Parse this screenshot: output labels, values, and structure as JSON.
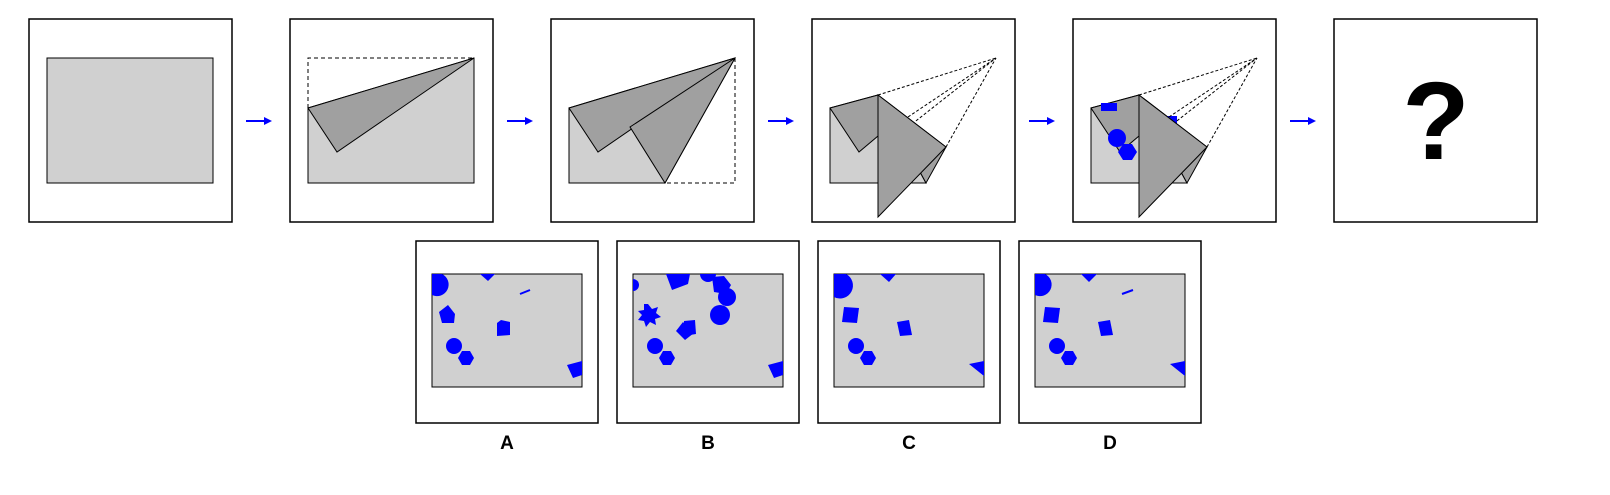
{
  "puzzle": {
    "question_mark": "?",
    "option_labels": [
      "A",
      "B",
      "C",
      "D"
    ],
    "colors": {
      "paper": "#d0d0d0",
      "flap": "#a0a0a0",
      "shape": "#0000ff",
      "arrow": "#0000ff",
      "frame": "#000000"
    }
  }
}
